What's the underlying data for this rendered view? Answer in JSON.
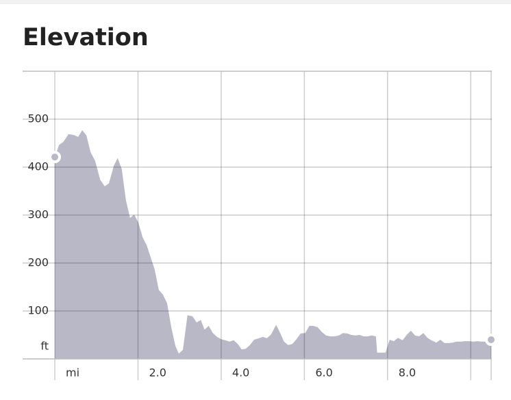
{
  "chart_data": {
    "type": "area",
    "title": "Elevation",
    "y_unit": "ft",
    "x": [
      0.0,
      0.1,
      0.21,
      0.33,
      0.46,
      0.56,
      0.66,
      0.76,
      0.86,
      0.97,
      1.09,
      1.2,
      1.3,
      1.42,
      1.51,
      1.61,
      1.71,
      1.81,
      1.91,
      2.01,
      2.11,
      2.21,
      2.3,
      2.4,
      2.5,
      2.6,
      2.7,
      2.8,
      2.9,
      2.98,
      3.08,
      3.19,
      3.31,
      3.41,
      3.51,
      3.6,
      3.7,
      3.8,
      3.9,
      4.0,
      4.1,
      4.2,
      4.3,
      4.4,
      4.49,
      4.59,
      4.69,
      4.79,
      4.91,
      5.0,
      5.1,
      5.2,
      5.32,
      5.42,
      5.51,
      5.61,
      5.71,
      5.81,
      5.91,
      6.02,
      6.12,
      6.22,
      6.32,
      6.42,
      6.52,
      6.62,
      6.73,
      6.83,
      6.93,
      7.03,
      7.13,
      7.23,
      7.33,
      7.42,
      7.52,
      7.62,
      7.72,
      7.75,
      7.85,
      7.95,
      8.05,
      8.15,
      8.25,
      8.36,
      8.46,
      8.56,
      8.66,
      8.76,
      8.86,
      8.96,
      9.05,
      9.17,
      9.27,
      9.37,
      9.47,
      9.56,
      9.66,
      9.76,
      9.86,
      9.96,
      10.06,
      10.16,
      10.26,
      10.35,
      10.49
    ],
    "values": [
      421,
      446,
      453,
      469,
      467,
      463,
      477,
      466,
      431,
      413,
      374,
      360,
      366,
      403,
      419,
      396,
      331,
      294,
      301,
      284,
      254,
      237,
      213,
      187,
      144,
      134,
      116,
      66,
      27,
      11,
      19,
      91,
      89,
      76,
      81,
      61,
      69,
      54,
      46,
      41,
      39,
      36,
      39,
      31,
      20,
      21,
      29,
      40,
      43,
      46,
      43,
      51,
      71,
      54,
      36,
      29,
      31,
      41,
      53,
      54,
      69,
      69,
      66,
      56,
      49,
      47,
      47,
      49,
      54,
      53,
      50,
      49,
      50,
      47,
      47,
      49,
      47,
      13,
      13,
      13,
      40,
      37,
      44,
      39,
      50,
      59,
      49,
      47,
      54,
      44,
      39,
      34,
      40,
      33,
      33,
      34,
      36,
      36,
      37,
      37,
      36,
      37,
      36,
      36,
      40
    ],
    "color": "#b9b8c6",
    "xlim": [
      0,
      10.49
    ],
    "ylim": [
      0,
      600
    ],
    "xticks": [
      {
        "value": 0,
        "label": "mi"
      },
      {
        "value": 2,
        "label": "2.0"
      },
      {
        "value": 4,
        "label": "4.0"
      },
      {
        "value": 6,
        "label": "6.0"
      },
      {
        "value": 8,
        "label": "8.0"
      },
      {
        "value": 10,
        "label": null
      }
    ],
    "yticks": [
      100,
      200,
      300,
      400,
      500
    ],
    "grid": true
  }
}
